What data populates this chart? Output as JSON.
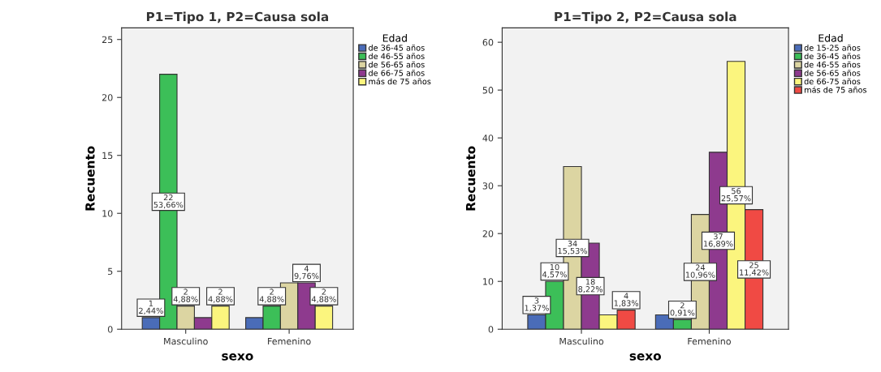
{
  "chart_data": [
    {
      "type": "bar",
      "title": "P1=Tipo 1, P2=Causa sola",
      "xlabel": "sexo",
      "ylabel": "Recuento",
      "legend_title": "Edad",
      "legend": "right",
      "grid": false,
      "categories": [
        "Masculino",
        "Femenino"
      ],
      "ylim": [
        0,
        26
      ],
      "yticks": [
        0,
        5,
        10,
        15,
        20,
        25
      ],
      "series": [
        {
          "name": "de 36-45 años",
          "color": "#4a6cb8",
          "values": [
            1,
            1
          ],
          "value_labels": [
            "1\n2,44%",
            null
          ]
        },
        {
          "name": "de 46-55 años",
          "color": "#3cbf58",
          "values": [
            22,
            2
          ],
          "value_labels": [
            "22\n53,66%",
            "2\n4,88%"
          ]
        },
        {
          "name": "de 56-65 años",
          "color": "#dcd5a2",
          "values": [
            2,
            4
          ],
          "value_labels": [
            "2\n4,88%",
            null
          ]
        },
        {
          "name": "de 66-75 años",
          "color": "#8e3a8e",
          "values": [
            1,
            4
          ],
          "value_labels": [
            null,
            "4\n9,76%"
          ]
        },
        {
          "name": "más de 75 años",
          "color": "#fbf57e",
          "values": [
            2,
            2
          ],
          "value_labels": [
            "2\n4,88%",
            "2\n4,88%"
          ]
        }
      ]
    },
    {
      "type": "bar",
      "title": "P1=Tipo 2, P2=Causa sola",
      "xlabel": "sexo",
      "ylabel": "Recuento",
      "legend_title": "Edad",
      "legend": "right",
      "grid": false,
      "categories": [
        "Masculino",
        "Femenino"
      ],
      "ylim": [
        0,
        63
      ],
      "yticks": [
        0,
        10,
        20,
        30,
        40,
        50,
        60
      ],
      "series": [
        {
          "name": "de 15-25 años",
          "color": "#4a6cb8",
          "values": [
            3,
            3
          ],
          "value_labels": [
            "3\n1,37%",
            null
          ]
        },
        {
          "name": "de 36-45 años",
          "color": "#3cbf58",
          "values": [
            10,
            2
          ],
          "value_labels": [
            "10\n4,57%",
            "2\n0,91%"
          ]
        },
        {
          "name": "de 46-55 años",
          "color": "#dcd5a2",
          "values": [
            34,
            24
          ],
          "value_labels": [
            "34\n15,53%",
            "24\n10,96%"
          ]
        },
        {
          "name": "de 56-65 años",
          "color": "#8e3a8e",
          "values": [
            18,
            37
          ],
          "value_labels": [
            "18\n8,22%",
            "37\n16,89%"
          ]
        },
        {
          "name": "de 66-75 años",
          "color": "#fbf57e",
          "values": [
            3,
            56
          ],
          "value_labels": [
            null,
            "56\n25,57%"
          ]
        },
        {
          "name": "más de 75 años",
          "color": "#f04a44",
          "values": [
            4,
            25
          ],
          "value_labels": [
            "4\n1,83%",
            "25\n11,42%"
          ]
        }
      ]
    }
  ]
}
